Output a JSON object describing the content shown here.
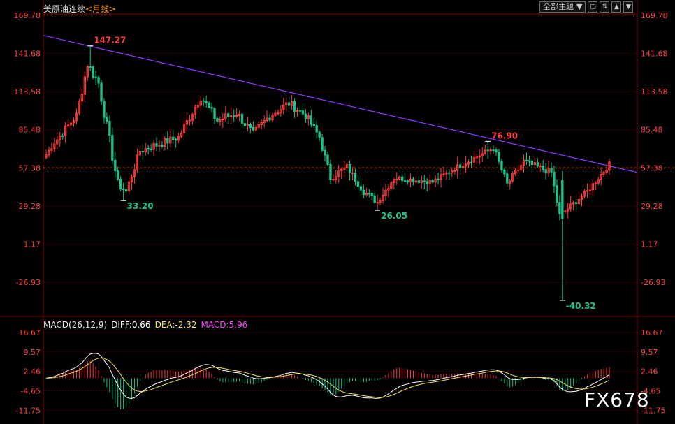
{
  "header": {
    "symbol": "美原油连续",
    "period": "<月线>"
  },
  "toolbar": {
    "select_label": "全部主题",
    "buttons": [
      "▼",
      "▢",
      "⇅",
      "▲",
      "▼"
    ]
  },
  "price_axis": {
    "ticks": [
      "169.78",
      "141.68",
      "113.58",
      "85.48",
      "57.38",
      "29.28",
      "1.17",
      "-26.93"
    ]
  },
  "macd": {
    "label": "MACD(26,12,9)",
    "diff_label": "DIFF:0.66",
    "dea_label": "DEA:-2.32",
    "macd_label": "MACD:5.96",
    "ticks": [
      "16.67",
      "9.57",
      "2.46",
      "-4.65",
      "-11.75"
    ]
  },
  "watermark": "FX678",
  "colors": {
    "up": "#ff3d3d",
    "down": "#19c48a",
    "trend": "#8e3bff",
    "diff": "#ffffff",
    "dea": "#f0e060",
    "macd_text": "#ff40ff",
    "grid": "#8b0000"
  },
  "chart_data": [
    {
      "type": "candlestick",
      "title": "美原油连续 <月线>",
      "ylim": [
        -40.32,
        169.78
      ],
      "annotations": [
        {
          "label": "147.27",
          "value": 147.27,
          "kind": "high"
        },
        {
          "label": "33.20",
          "value": 33.2,
          "kind": "low"
        },
        {
          "label": "26.05",
          "value": 26.05,
          "kind": "low"
        },
        {
          "label": "76.90",
          "value": 76.9,
          "kind": "high"
        },
        {
          "label": "-40.32",
          "value": -40.32,
          "kind": "low"
        }
      ],
      "reference_line": {
        "value": 57.38
      },
      "trendline": {
        "from_value": 155,
        "to_value": 54
      },
      "segments": [
        {
          "bars": 4,
          "from": 64,
          "to": 76,
          "noise": 4
        },
        {
          "bars": 8,
          "from": 76,
          "to": 96,
          "noise": 6
        },
        {
          "bars": 4,
          "from": 96,
          "to": 134,
          "noise": 8
        },
        {
          "bars": 4,
          "from": 134,
          "to": 120,
          "noise": 8
        },
        {
          "bars": 7,
          "from": 120,
          "to": 45,
          "noise": 9
        },
        {
          "bars": 3,
          "from": 45,
          "to": 40,
          "noise": 5
        },
        {
          "bars": 5,
          "from": 40,
          "to": 70,
          "noise": 6
        },
        {
          "bars": 14,
          "from": 70,
          "to": 80,
          "noise": 6
        },
        {
          "bars": 8,
          "from": 80,
          "to": 110,
          "noise": 7
        },
        {
          "bars": 6,
          "from": 110,
          "to": 92,
          "noise": 7
        },
        {
          "bars": 7,
          "from": 92,
          "to": 98,
          "noise": 8
        },
        {
          "bars": 6,
          "from": 98,
          "to": 82,
          "noise": 7
        },
        {
          "bars": 6,
          "from": 82,
          "to": 96,
          "noise": 7
        },
        {
          "bars": 7,
          "from": 96,
          "to": 105,
          "noise": 7
        },
        {
          "bars": 6,
          "from": 105,
          "to": 96,
          "noise": 6
        },
        {
          "bars": 5,
          "from": 96,
          "to": 80,
          "noise": 6
        },
        {
          "bars": 4,
          "from": 80,
          "to": 50,
          "noise": 6
        },
        {
          "bars": 6,
          "from": 50,
          "to": 58,
          "noise": 5
        },
        {
          "bars": 6,
          "from": 58,
          "to": 40,
          "noise": 5
        },
        {
          "bars": 5,
          "from": 40,
          "to": 32,
          "noise": 5
        },
        {
          "bars": 6,
          "from": 32,
          "to": 50,
          "noise": 4
        },
        {
          "bars": 14,
          "from": 50,
          "to": 47,
          "noise": 4
        },
        {
          "bars": 8,
          "from": 47,
          "to": 57,
          "noise": 4
        },
        {
          "bars": 14,
          "from": 57,
          "to": 72,
          "noise": 4
        },
        {
          "bars": 5,
          "from": 72,
          "to": 45,
          "noise": 6
        },
        {
          "bars": 6,
          "from": 45,
          "to": 62,
          "noise": 5
        },
        {
          "bars": 10,
          "from": 62,
          "to": 54,
          "noise": 5
        },
        {
          "bars": 3,
          "from": 54,
          "to": 22,
          "noise": 6
        },
        {
          "bars": 10,
          "from": 22,
          "to": 40,
          "noise": 4
        },
        {
          "bars": 8,
          "from": 40,
          "to": 60,
          "noise": 4
        }
      ]
    },
    {
      "type": "macd",
      "ylim": [
        -16,
        16.67
      ],
      "series_names": [
        "DIFF",
        "DEA",
        "MACD"
      ]
    }
  ]
}
